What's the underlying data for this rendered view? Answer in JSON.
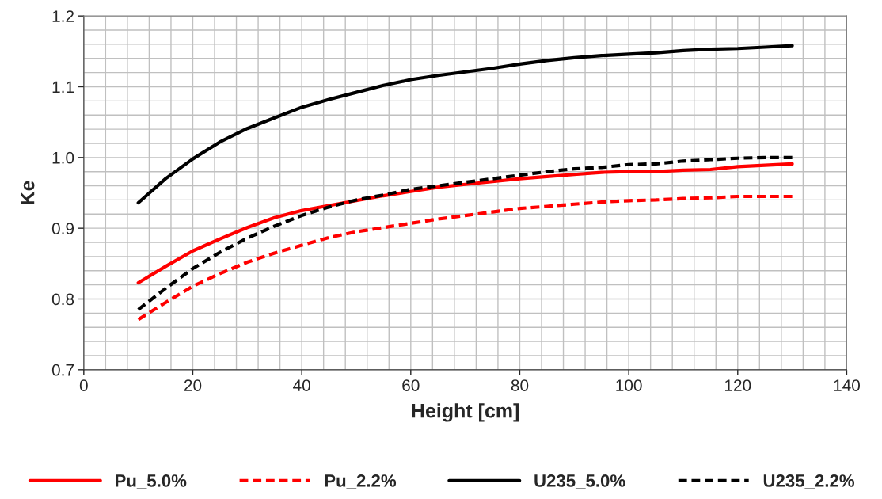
{
  "chart_data": {
    "type": "line",
    "xlabel": "Height [cm]",
    "ylabel": "Ke",
    "x": [
      10,
      15,
      20,
      25,
      30,
      35,
      40,
      45,
      50,
      55,
      60,
      65,
      70,
      75,
      80,
      85,
      90,
      95,
      100,
      105,
      110,
      115,
      120,
      125,
      130
    ],
    "series": [
      {
        "name": "Pu_5.0%",
        "color": "#ff0000",
        "line_style": "solid",
        "values": [
          0.823,
          0.846,
          0.868,
          0.885,
          0.901,
          0.915,
          0.925,
          0.932,
          0.939,
          0.946,
          0.952,
          0.958,
          0.962,
          0.966,
          0.97,
          0.973,
          0.976,
          0.979,
          0.98,
          0.98,
          0.982,
          0.983,
          0.987,
          0.989,
          0.991
        ]
      },
      {
        "name": "Pu_2.2%",
        "color": "#ff0000",
        "line_style": "dashed",
        "values": [
          0.771,
          0.795,
          0.818,
          0.836,
          0.852,
          0.865,
          0.876,
          0.887,
          0.895,
          0.901,
          0.907,
          0.913,
          0.918,
          0.923,
          0.928,
          0.931,
          0.934,
          0.937,
          0.939,
          0.94,
          0.942,
          0.943,
          0.945,
          0.945,
          0.945
        ]
      },
      {
        "name": "U235_5.0%",
        "color": "#000000",
        "line_style": "solid",
        "values": [
          0.936,
          0.97,
          0.998,
          1.022,
          1.041,
          1.056,
          1.071,
          1.082,
          1.092,
          1.102,
          1.11,
          1.116,
          1.121,
          1.126,
          1.132,
          1.137,
          1.141,
          1.144,
          1.146,
          1.148,
          1.151,
          1.153,
          1.154,
          1.156,
          1.158
        ]
      },
      {
        "name": "U235_2.2%",
        "color": "#000000",
        "line_style": "dashed",
        "values": [
          0.785,
          0.815,
          0.843,
          0.866,
          0.886,
          0.903,
          0.918,
          0.93,
          0.94,
          0.947,
          0.955,
          0.96,
          0.965,
          0.97,
          0.975,
          0.98,
          0.984,
          0.986,
          0.99,
          0.991,
          0.995,
          0.997,
          0.999,
          1.0,
          1.0
        ]
      }
    ],
    "xlim": [
      0,
      140
    ],
    "xticks": [
      0,
      20,
      40,
      60,
      80,
      100,
      120,
      140
    ],
    "ylim": [
      0.7,
      1.2
    ],
    "yticks": [
      {
        "value": 0.7,
        "label": "0.7"
      },
      {
        "value": 0.8,
        "label": "0.8"
      },
      {
        "value": 0.9,
        "label": "0.9"
      },
      {
        "value": 1.0,
        "label": "1.0"
      },
      {
        "value": 1.1,
        "label": "1.1"
      },
      {
        "value": 1.2,
        "label": "1.2"
      }
    ],
    "grid": true,
    "legend": "bottom",
    "marker": "none"
  }
}
